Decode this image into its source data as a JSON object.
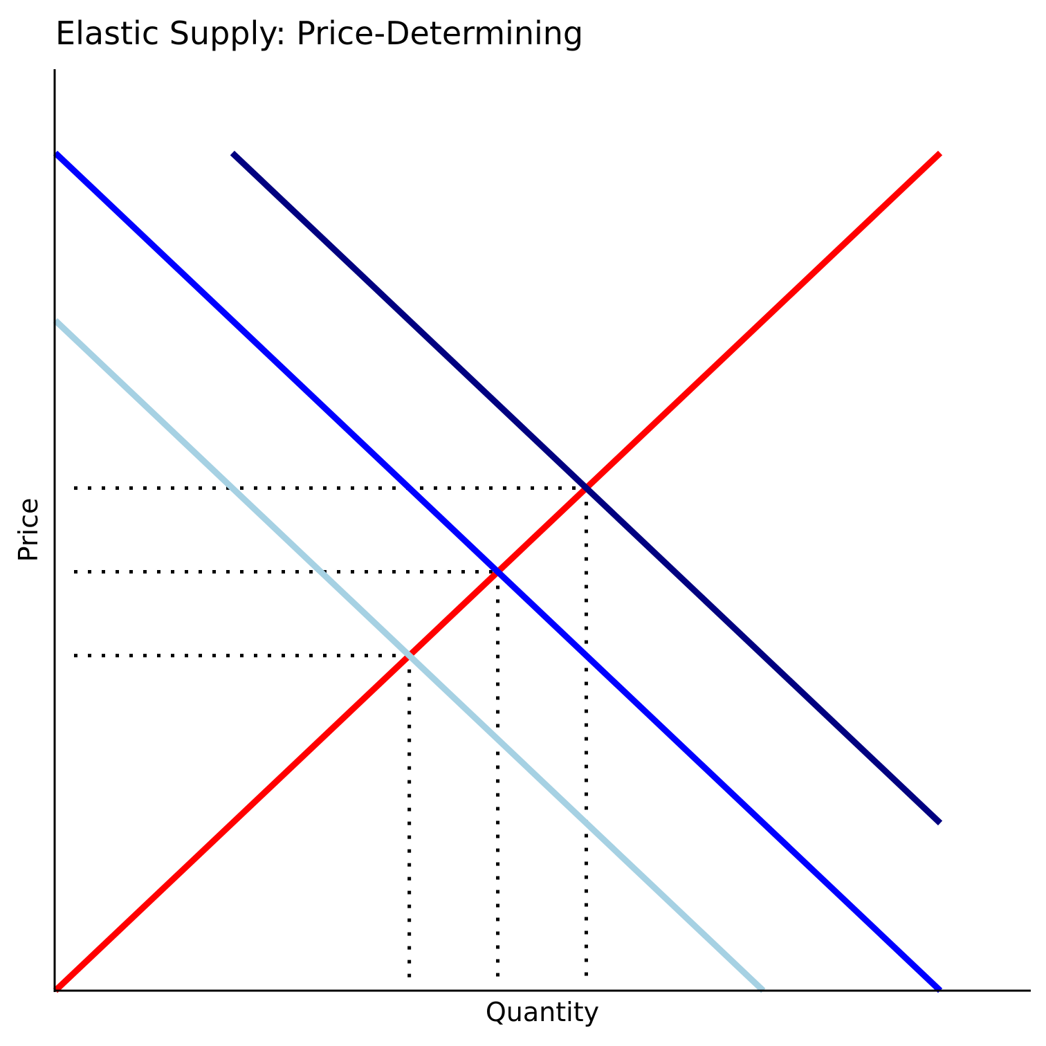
{
  "chart_data": {
    "type": "line",
    "title": "Elastic Supply: Price-Determining",
    "xlabel": "Quantity",
    "ylabel": "Price",
    "xlim": [
      0,
      11
    ],
    "ylim": [
      0,
      11
    ],
    "grid": false,
    "series": [
      {
        "color": "#ff0000",
        "x": [
          0,
          10
        ],
        "y": [
          0,
          10
        ]
      },
      {
        "color": "#0000ff",
        "x": [
          0,
          10
        ],
        "y": [
          10,
          0
        ]
      },
      {
        "color": "#000080",
        "x": [
          2,
          10
        ],
        "y": [
          10,
          2
        ]
      },
      {
        "color": "#a6d1e3",
        "x": [
          0,
          8
        ],
        "y": [
          8,
          0
        ]
      }
    ],
    "guides": [
      {
        "x": 4,
        "y": 4
      },
      {
        "x": 5,
        "y": 5
      },
      {
        "x": 6,
        "y": 6
      }
    ]
  }
}
